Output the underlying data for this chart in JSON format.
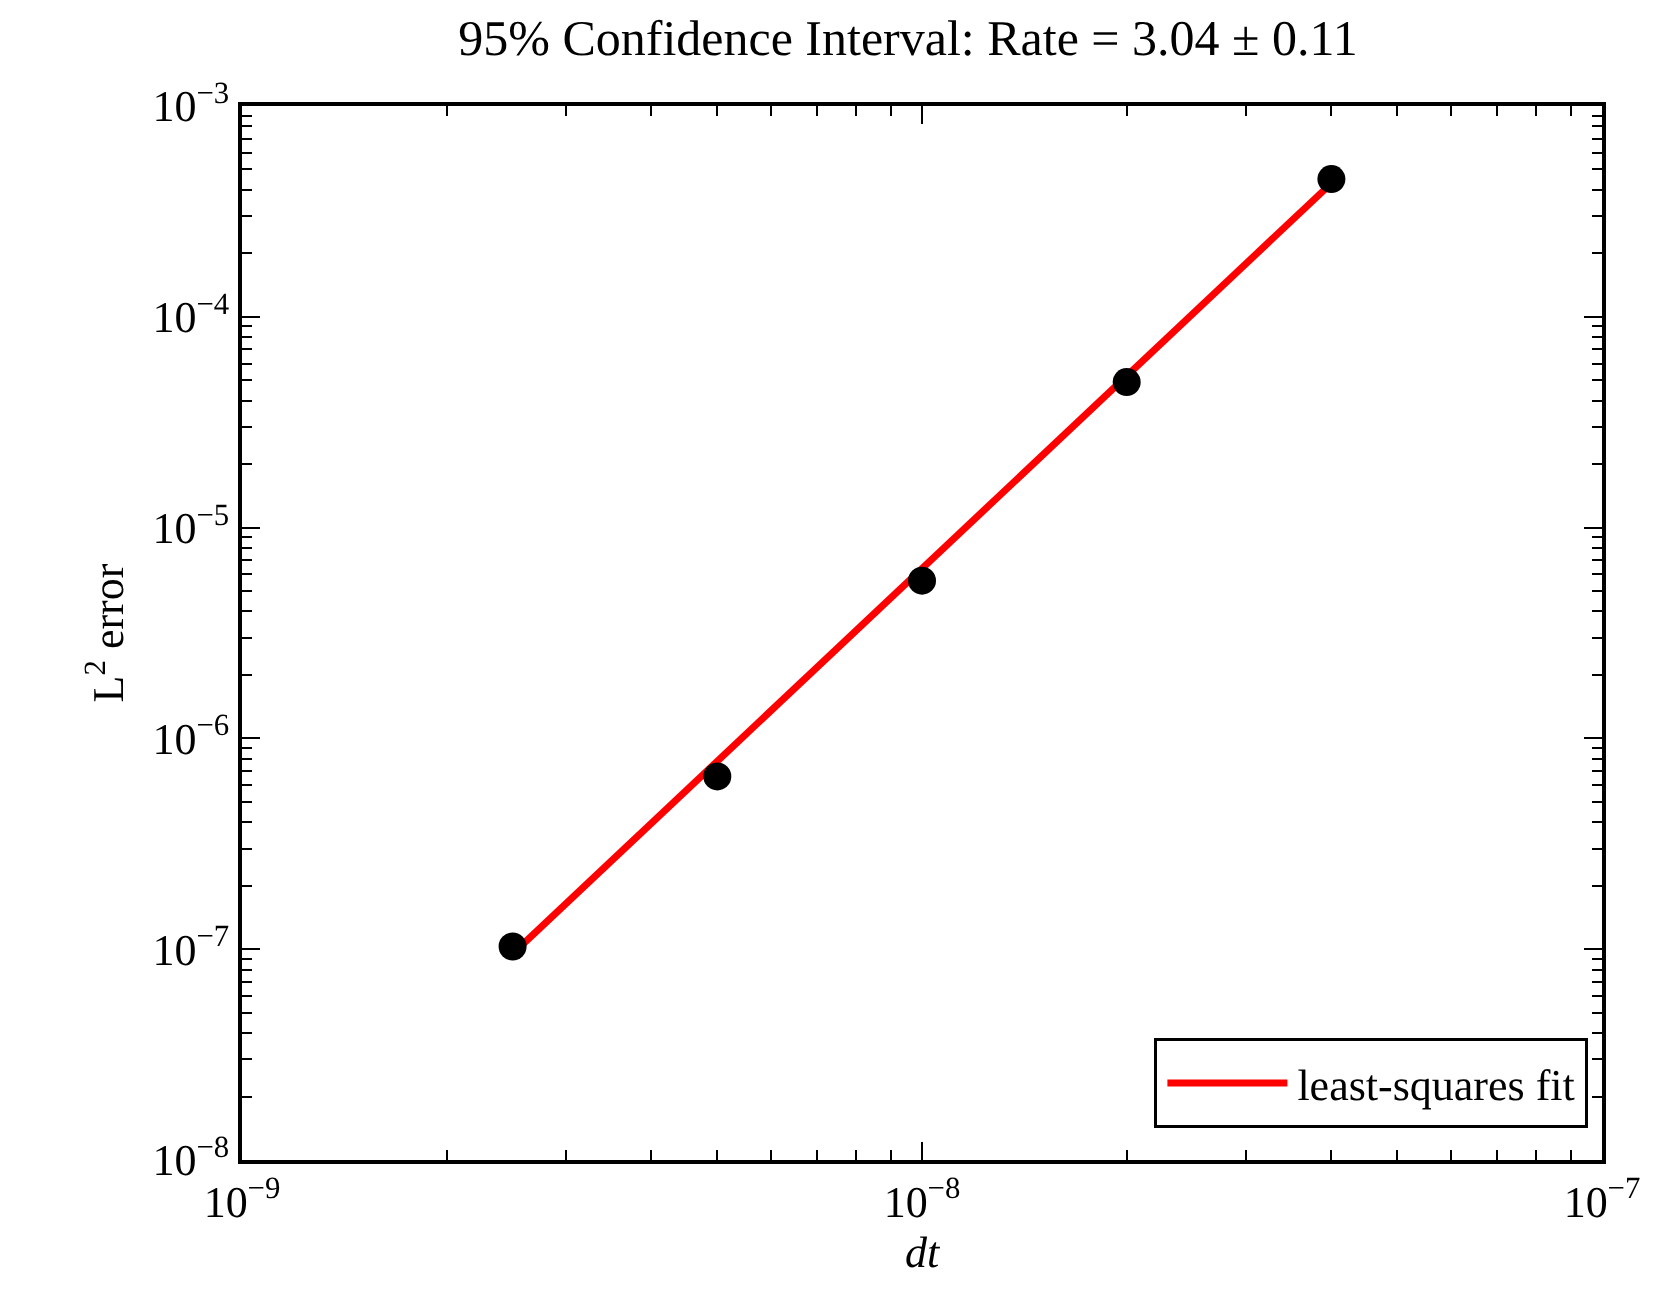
{
  "chart_data": {
    "type": "scatter",
    "title": "95% Confidence Interval: Rate = 3.04 ± 0.11",
    "xlabel": "dt",
    "ylabel": "L$^{2}$ error",
    "log": "xy",
    "xlim": [
      1e-09,
      1e-07
    ],
    "ylim": [
      1e-08,
      0.001
    ],
    "xticks": [
      {
        "value": 1e-09,
        "label": "10$^{−9}$"
      },
      {
        "value": 1e-08,
        "label": "10$^{−8}$"
      },
      {
        "value": 1e-07,
        "label": "10$^{−7}$"
      }
    ],
    "yticks": [
      {
        "value": 1e-08,
        "label": "10$^{−8}$"
      },
      {
        "value": 1e-07,
        "label": "10$^{−7}$"
      },
      {
        "value": 1e-06,
        "label": "10$^{−6}$"
      },
      {
        "value": 1e-05,
        "label": "10$^{−5}$"
      },
      {
        "value": 0.0001,
        "label": "10$^{−4}$"
      },
      {
        "value": 0.001,
        "label": "10$^{−3}$"
      }
    ],
    "legend": "bottom right",
    "series": [
      {
        "type": "line",
        "name": "least-squares fit",
        "color": "#ff0000",
        "x": [
          2.5e-09,
          4e-08
        ],
        "values": [
          9.5e-08,
          0.00043
        ],
        "marker": "none",
        "line_style": "solid"
      },
      {
        "color": "#000000",
        "x": [
          2.5e-09,
          5e-09,
          1e-08,
          2e-08,
          4e-08
        ],
        "values": [
          1.03e-07,
          6.6e-07,
          5.6e-06,
          4.9e-05,
          0.00045
        ],
        "marker": "circle"
      }
    ]
  }
}
